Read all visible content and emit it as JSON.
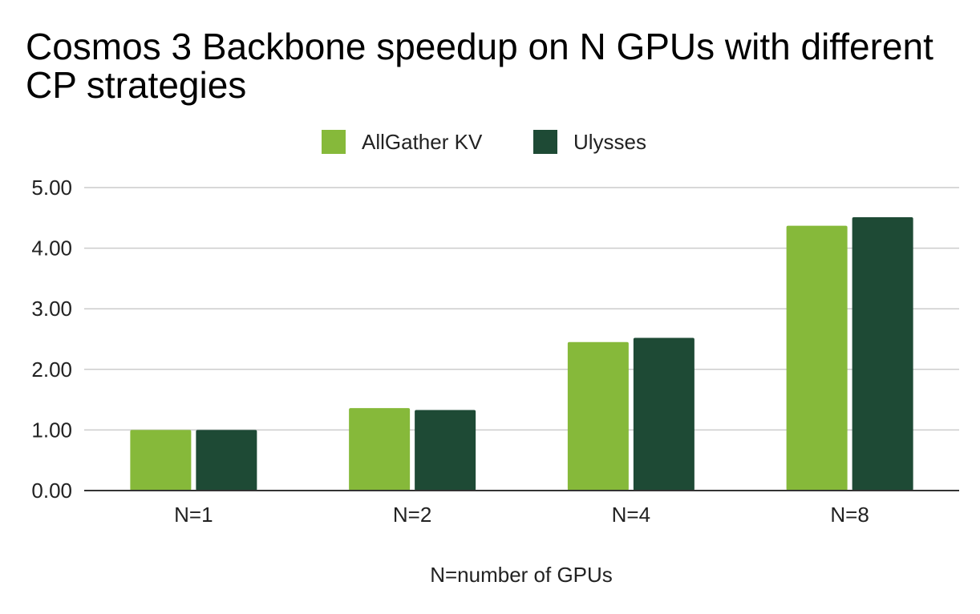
{
  "chart_data": {
    "type": "bar",
    "title": "Cosmos 3 Backbone speedup on N GPUs with different CP strategies",
    "xlabel": "N=number of GPUs",
    "ylabel": "",
    "categories": [
      "N=1",
      "N=2",
      "N=4",
      "N=8"
    ],
    "series": [
      {
        "name": "AllGather KV",
        "color": "#86b93a",
        "values": [
          1.0,
          1.36,
          2.45,
          4.37
        ]
      },
      {
        "name": "Ulysses",
        "color": "#1e4a35",
        "values": [
          1.0,
          1.33,
          2.52,
          4.51
        ]
      }
    ],
    "ylim": [
      0,
      5
    ],
    "yticks": [
      "0.00",
      "1.00",
      "2.00",
      "3.00",
      "4.00",
      "5.00"
    ],
    "grid": true,
    "legend_position": "top"
  }
}
